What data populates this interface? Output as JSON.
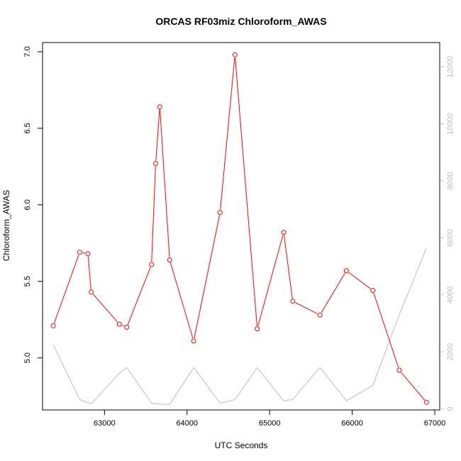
{
  "chart_data": {
    "type": "line",
    "title": "ORCAS RF03miz Chloroform_AWAS",
    "xlabel": "UTC Seconds",
    "ylabel": "Chloroform_AWAS",
    "xlim": [
      62250,
      67060
    ],
    "ylim": [
      4.66,
      7.06
    ],
    "y2lim": [
      -40,
      12850
    ],
    "x_ticks": [
      63000,
      64000,
      65000,
      66000,
      67000
    ],
    "y_ticks": [
      5.0,
      5.5,
      6.0,
      6.5,
      7.0
    ],
    "y2_ticks": [
      0,
      2000,
      4000,
      6000,
      8000,
      10000,
      12000
    ],
    "x_tick_labels": [
      "63000",
      "64000",
      "65000",
      "66000",
      "67000"
    ],
    "y_tick_labels": [
      "5.0",
      "5.5",
      "6.0",
      "6.5",
      "7.0"
    ],
    "y2_tick_labels": [
      "0",
      "2000",
      "4000",
      "6000",
      "8000",
      "10000",
      "12000"
    ],
    "colors": {
      "primary": "#ff0000",
      "secondary": "#bdbdbd",
      "axis": "#000000"
    },
    "series": [
      {
        "axis": "left",
        "marker": "circle",
        "x": [
          62380,
          62700,
          62800,
          62840,
          63180,
          63270,
          63570,
          63620,
          63670,
          63790,
          64080,
          64400,
          64580,
          64850,
          65170,
          65280,
          65610,
          65930,
          66250,
          66570,
          66900
        ],
        "y": [
          5.21,
          5.69,
          5.68,
          5.43,
          5.22,
          5.2,
          5.61,
          6.27,
          6.64,
          5.64,
          5.11,
          5.95,
          6.98,
          5.19,
          5.82,
          5.37,
          5.28,
          5.57,
          5.44,
          4.92,
          4.71
        ]
      },
      {
        "axis": "right",
        "marker": "none",
        "x": [
          62380,
          62700,
          62800,
          62840,
          63180,
          63270,
          63570,
          63620,
          63670,
          63790,
          64080,
          64400,
          64580,
          64850,
          65170,
          65280,
          65610,
          65930,
          66250,
          66570,
          66900
        ],
        "y": [
          2250,
          320,
          220,
          180,
          1250,
          1450,
          200,
          180,
          170,
          150,
          1450,
          200,
          320,
          1450,
          270,
          330,
          1450,
          280,
          820,
          3300,
          5650
        ]
      }
    ]
  }
}
